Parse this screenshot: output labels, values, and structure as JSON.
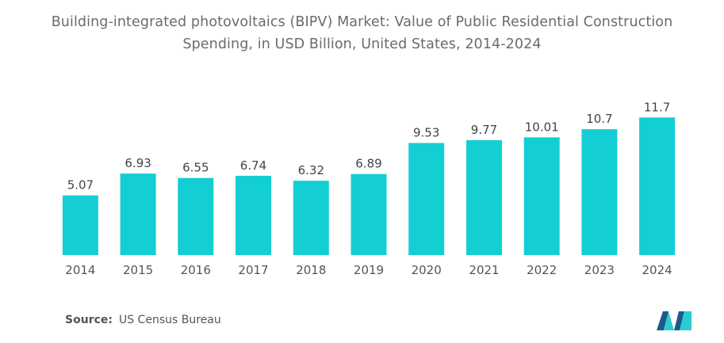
{
  "title_line1": "Building-integrated photovoltaics (BIPV) Market: Value of Public Residential Construction",
  "title_line2": "Spending, in USD Billion, United States, 2014-2024",
  "source": {
    "label": "Source:",
    "value": "US Census Bureau"
  },
  "colors": {
    "bar": "#13cfd3",
    "logo_dark": "#1a5b8c",
    "logo_light": "#2ccbd0"
  },
  "chart_data": {
    "type": "bar",
    "title": "Building-integrated photovoltaics (BIPV) Market: Value of Public Residential Construction Spending, in USD Billion, United States, 2014-2024",
    "xlabel": "",
    "ylabel": "",
    "categories": [
      "2014",
      "2015",
      "2016",
      "2017",
      "2018",
      "2019",
      "2020",
      "2021",
      "2022",
      "2023",
      "2024"
    ],
    "values": [
      5.07,
      6.93,
      6.55,
      6.74,
      6.32,
      6.89,
      9.53,
      9.77,
      10.01,
      10.7,
      11.7
    ],
    "labels": [
      "5.07",
      "6.93",
      "6.55",
      "6.74",
      "6.32",
      "6.89",
      "9.53",
      "9.77",
      "10.01",
      "10.7",
      "11.7"
    ],
    "ylim": [
      0,
      13.2
    ],
    "grid": false,
    "legend": "none"
  }
}
